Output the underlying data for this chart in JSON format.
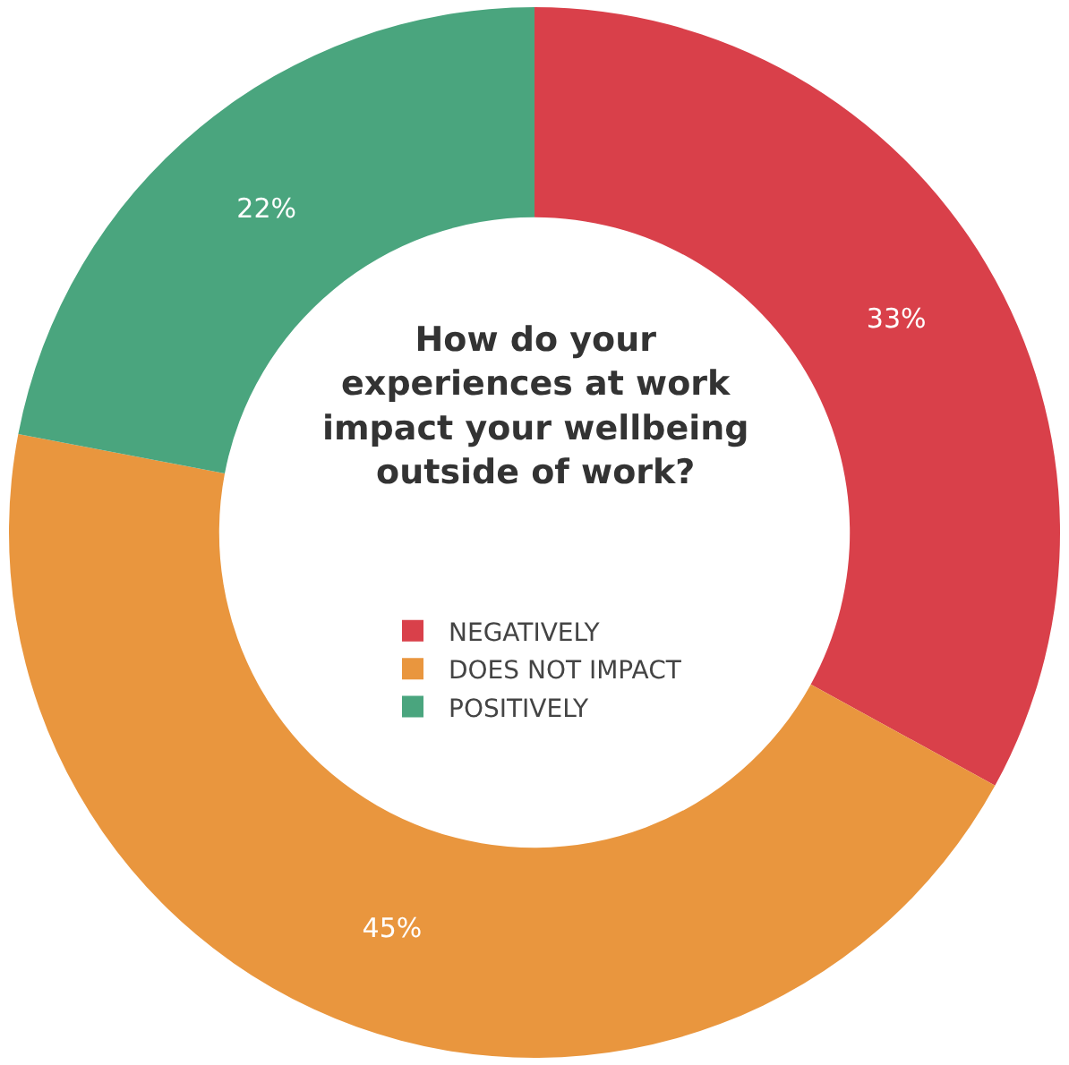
{
  "chart_data": {
    "type": "donut",
    "title": "How do your experiences at work impact your wellbeing outside of work?",
    "categories": [
      "NEGATIVELY",
      "DOES NOT IMPACT",
      "POSITIVELY"
    ],
    "values": [
      33,
      45,
      22
    ],
    "colors": [
      "#d9404a",
      "#e9963e",
      "#4aa57e"
    ],
    "value_labels": [
      "33%",
      "45%",
      "22%"
    ],
    "legend": "center"
  }
}
